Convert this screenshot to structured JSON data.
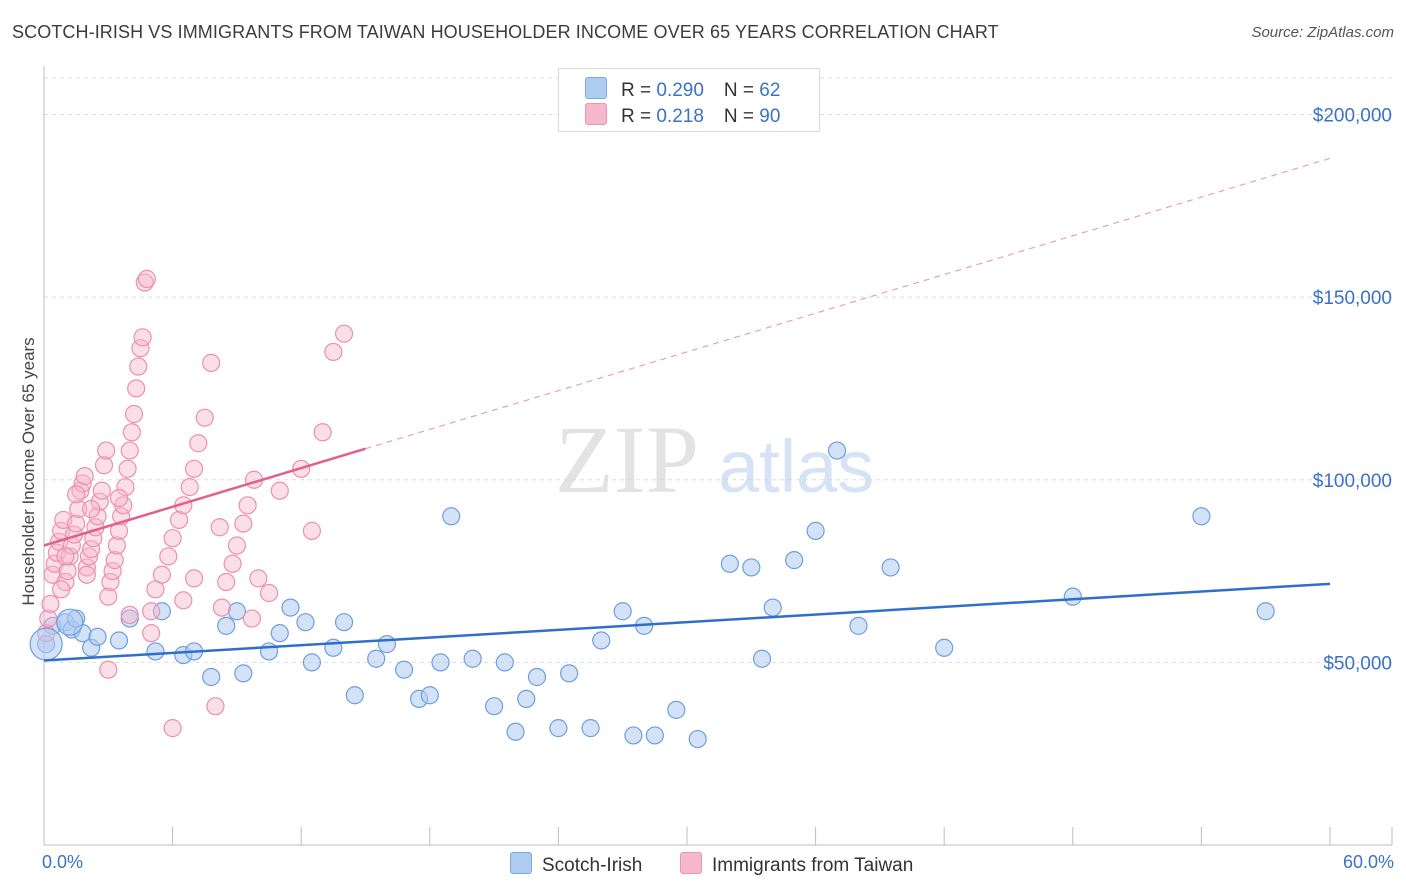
{
  "title": "SCOTCH-IRISH VS IMMIGRANTS FROM TAIWAN HOUSEHOLDER INCOME OVER 65 YEARS CORRELATION CHART",
  "source": "Source: ZipAtlas.com",
  "legend": {
    "rows": [
      {
        "r_label": "R = ",
        "r_value": "0.290",
        "n_label": "N = ",
        "n_value": "62"
      },
      {
        "r_label": "R = ",
        "r_value": " 0.218",
        "n_label": "N = ",
        "n_value": "90"
      }
    ]
  },
  "colors": {
    "blue": "#3a72c4",
    "blue_fill": "#aecbf0",
    "blue_line": "#2f6fcc",
    "pink": "#e8709a",
    "pink_fill": "#f6b8cb",
    "pink_line": "#e2608c"
  },
  "chart_data": {
    "type": "scatter",
    "title": "SCOTCH-IRISH VS IMMIGRANTS FROM TAIWAN HOUSEHOLDER INCOME OVER 65 YEARS CORRELATION CHART",
    "xlabel": "",
    "ylabel": "Householder Income Over 65 years",
    "xlim": [
      0,
      60
    ],
    "ylim": [
      0,
      210000
    ],
    "x_tick_labels": {
      "left": "0.0%",
      "right": "60.0%"
    },
    "y_ticks": [
      {
        "value": 50000,
        "label": "$50,000"
      },
      {
        "value": 100000,
        "label": "$100,000"
      },
      {
        "value": 150000,
        "label": "$150,000"
      },
      {
        "value": 200000,
        "label": "$200,000"
      }
    ],
    "watermark": {
      "zip": "ZIP",
      "atlas": "atlas"
    },
    "series": [
      {
        "name": "Scotch-Irish",
        "color": "#3a72c4",
        "trend": {
          "x0": 0,
          "y0": 50500,
          "x1": 60,
          "y1": 71500,
          "dashed_to": 60
        },
        "points": [
          [
            0.1,
            55000
          ],
          [
            0.4,
            60000
          ],
          [
            1.0,
            61000
          ],
          [
            1.3,
            59000
          ],
          [
            1.8,
            58000
          ],
          [
            2.2,
            54000
          ],
          [
            3.5,
            56000
          ],
          [
            4.0,
            62000
          ],
          [
            5.2,
            53000
          ],
          [
            5.5,
            64000
          ],
          [
            6.5,
            52000
          ],
          [
            7.0,
            53000
          ],
          [
            7.8,
            46000
          ],
          [
            8.5,
            60000
          ],
          [
            9.0,
            64000
          ],
          [
            9.3,
            47000
          ],
          [
            10.5,
            53000
          ],
          [
            11.0,
            58000
          ],
          [
            11.5,
            65000
          ],
          [
            12.2,
            61000
          ],
          [
            12.5,
            50000
          ],
          [
            13.5,
            54000
          ],
          [
            14.0,
            61000
          ],
          [
            14.5,
            41000
          ],
          [
            15.5,
            51000
          ],
          [
            16.0,
            55000
          ],
          [
            16.8,
            48000
          ],
          [
            17.5,
            40000
          ],
          [
            18.0,
            41000
          ],
          [
            18.5,
            50000
          ],
          [
            19.0,
            90000
          ],
          [
            20.0,
            51000
          ],
          [
            21.0,
            38000
          ],
          [
            21.5,
            50000
          ],
          [
            22.0,
            31000
          ],
          [
            22.5,
            40000
          ],
          [
            23.0,
            46000
          ],
          [
            24.0,
            32000
          ],
          [
            24.5,
            47000
          ],
          [
            25.5,
            32000
          ],
          [
            26.0,
            56000
          ],
          [
            27.0,
            64000
          ],
          [
            27.5,
            30000
          ],
          [
            28.0,
            60000
          ],
          [
            28.5,
            30000
          ],
          [
            29.5,
            37000
          ],
          [
            30.5,
            29000
          ],
          [
            32.0,
            77000
          ],
          [
            33.0,
            76000
          ],
          [
            33.5,
            51000
          ],
          [
            34.0,
            65000
          ],
          [
            35.0,
            78000
          ],
          [
            36.0,
            86000
          ],
          [
            37.0,
            108000
          ],
          [
            38.0,
            60000
          ],
          [
            39.5,
            76000
          ],
          [
            42.0,
            54000
          ],
          [
            48.0,
            68000
          ],
          [
            54.0,
            90000
          ],
          [
            57.0,
            64000
          ],
          [
            1.5,
            62000
          ],
          [
            2.5,
            57000
          ]
        ]
      },
      {
        "name": "Immigrants from Taiwan",
        "color": "#e8709a",
        "trend": {
          "x0": 0,
          "y0": 82000,
          "x1": 15,
          "y1": 108500,
          "dashed_to": 60,
          "dashed_end_y": 188000
        },
        "points": [
          [
            0.1,
            58000
          ],
          [
            0.2,
            62000
          ],
          [
            0.3,
            66000
          ],
          [
            0.4,
            74000
          ],
          [
            0.5,
            77000
          ],
          [
            0.6,
            80000
          ],
          [
            0.7,
            83000
          ],
          [
            0.8,
            86000
          ],
          [
            0.9,
            89000
          ],
          [
            1.0,
            72000
          ],
          [
            1.1,
            75000
          ],
          [
            1.2,
            79000
          ],
          [
            1.3,
            82000
          ],
          [
            1.4,
            85000
          ],
          [
            1.5,
            88000
          ],
          [
            1.6,
            92000
          ],
          [
            1.7,
            97000
          ],
          [
            1.8,
            99000
          ],
          [
            1.9,
            101000
          ],
          [
            2.0,
            76000
          ],
          [
            2.1,
            79000
          ],
          [
            2.2,
            81000
          ],
          [
            2.3,
            84000
          ],
          [
            2.4,
            87000
          ],
          [
            2.5,
            90000
          ],
          [
            2.6,
            94000
          ],
          [
            2.7,
            97000
          ],
          [
            2.8,
            104000
          ],
          [
            2.9,
            108000
          ],
          [
            3.0,
            68000
          ],
          [
            3.1,
            72000
          ],
          [
            3.2,
            75000
          ],
          [
            3.3,
            78000
          ],
          [
            3.4,
            82000
          ],
          [
            3.5,
            86000
          ],
          [
            3.6,
            90000
          ],
          [
            3.7,
            93000
          ],
          [
            3.8,
            98000
          ],
          [
            3.9,
            103000
          ],
          [
            4.0,
            108000
          ],
          [
            4.1,
            113000
          ],
          [
            4.2,
            118000
          ],
          [
            4.3,
            125000
          ],
          [
            4.4,
            131000
          ],
          [
            4.5,
            136000
          ],
          [
            4.6,
            139000
          ],
          [
            4.7,
            154000
          ],
          [
            4.8,
            155000
          ],
          [
            5.0,
            64000
          ],
          [
            5.2,
            70000
          ],
          [
            5.5,
            74000
          ],
          [
            5.8,
            79000
          ],
          [
            6.0,
            84000
          ],
          [
            6.3,
            89000
          ],
          [
            6.5,
            93000
          ],
          [
            6.8,
            98000
          ],
          [
            7.0,
            103000
          ],
          [
            7.2,
            110000
          ],
          [
            7.5,
            117000
          ],
          [
            7.8,
            132000
          ],
          [
            8.0,
            38000
          ],
          [
            8.3,
            65000
          ],
          [
            8.5,
            72000
          ],
          [
            8.8,
            77000
          ],
          [
            9.0,
            82000
          ],
          [
            9.3,
            88000
          ],
          [
            9.5,
            93000
          ],
          [
            9.8,
            100000
          ],
          [
            10.0,
            73000
          ],
          [
            10.5,
            69000
          ],
          [
            11.0,
            97000
          ],
          [
            12.0,
            103000
          ],
          [
            12.5,
            86000
          ],
          [
            13.0,
            113000
          ],
          [
            13.5,
            135000
          ],
          [
            14.0,
            140000
          ],
          [
            3.0,
            48000
          ],
          [
            6.0,
            32000
          ],
          [
            1.0,
            79000
          ],
          [
            2.0,
            74000
          ],
          [
            5.0,
            58000
          ],
          [
            4.0,
            63000
          ],
          [
            7.0,
            73000
          ],
          [
            3.5,
            95000
          ],
          [
            2.2,
            92000
          ],
          [
            1.5,
            96000
          ],
          [
            6.5,
            67000
          ],
          [
            8.2,
            87000
          ],
          [
            9.7,
            62000
          ],
          [
            0.8,
            70000
          ]
        ]
      }
    ]
  }
}
